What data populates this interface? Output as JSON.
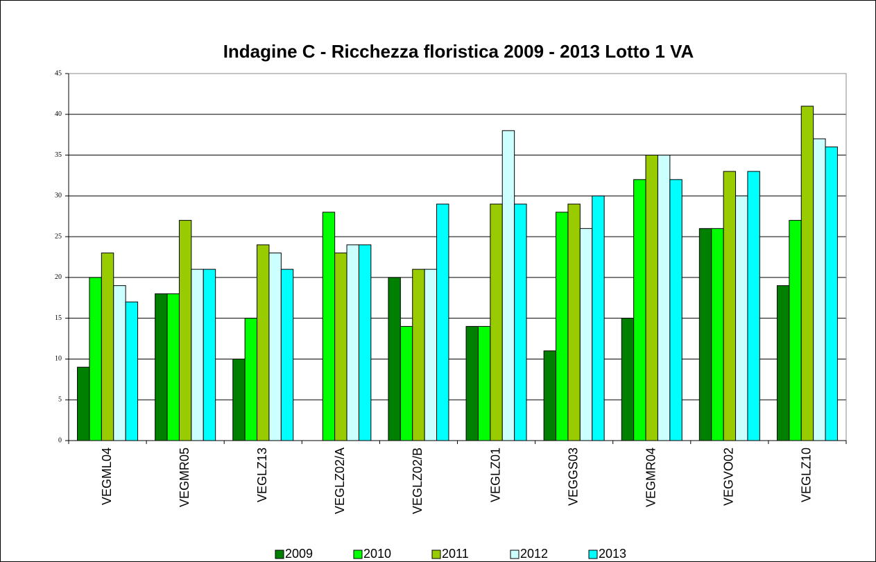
{
  "chart_data": {
    "type": "bar",
    "title": "Indagine C - Ricchezza floristica 2009 - 2013 Lotto 1 VA",
    "categories": [
      "VEGML04",
      "VEGMR05",
      "VEGLZ13",
      "VEGLZ02/A",
      "VEGLZ02/B",
      "VEGLZ01",
      "VEGGS03",
      "VEGMR04",
      "VEGVO02",
      "VEGLZ10"
    ],
    "series": [
      {
        "name": "2009",
        "color": "#008000",
        "values": [
          9,
          18,
          10,
          null,
          20,
          14,
          11,
          15,
          26,
          19
        ]
      },
      {
        "name": "2010",
        "color": "#00ff00",
        "values": [
          20,
          18,
          15,
          28,
          14,
          14,
          28,
          32,
          26,
          27
        ]
      },
      {
        "name": "2011",
        "color": "#99cc00",
        "values": [
          23,
          27,
          24,
          23,
          21,
          29,
          29,
          35,
          33,
          41
        ]
      },
      {
        "name": "2012",
        "color": "#ccffff",
        "values": [
          19,
          21,
          23,
          24,
          21,
          38,
          26,
          35,
          30,
          37
        ]
      },
      {
        "name": "2013",
        "color": "#00ffff",
        "values": [
          17,
          21,
          21,
          24,
          29,
          29,
          30,
          32,
          33,
          36
        ]
      }
    ],
    "ylim": [
      0,
      45
    ],
    "yticks": [
      0,
      5,
      10,
      15,
      20,
      25,
      30,
      35,
      40,
      45
    ],
    "grid": true,
    "legend": "bottom"
  }
}
